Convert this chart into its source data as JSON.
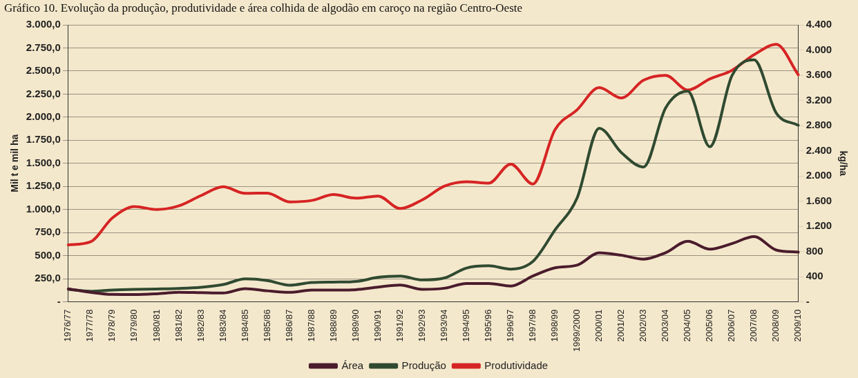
{
  "chart_data": {
    "type": "line",
    "title": "Gráfico 10. Evolução da produção, produtividade e área colhida de algodão em caroço na região Centro-Oeste",
    "ylabel": "Mil t e mil ha",
    "y2label": "kg/ha",
    "categories": [
      "1976/77",
      "1977/78",
      "1978/79",
      "1979/80",
      "1980/81",
      "1981/82",
      "1982/83",
      "1983/84",
      "1984/85",
      "1985/86",
      "1986/87",
      "1987/88",
      "1988/89",
      "1989/90",
      "1990/91",
      "1991/92",
      "1992/93",
      "1993/94",
      "1994/95",
      "1995/96",
      "1996/97",
      "1997/98",
      "1998/99",
      "1999/2000",
      "2000/01",
      "2001/02",
      "2002/03",
      "2003/04",
      "2004/05",
      "2005/06",
      "2006/07",
      "2007/08",
      "2008/09",
      "2009/10"
    ],
    "series": [
      {
        "name": "Área",
        "color": "#4a1c2c",
        "values": [
          140,
          103,
          80,
          78,
          87,
          103,
          99,
          95,
          143,
          119,
          103,
          127,
          127,
          132,
          159,
          182,
          135,
          147,
          199,
          199,
          171,
          279,
          368,
          397,
          530,
          504,
          462,
          532,
          656,
          570,
          631,
          706,
          561,
          538
        ]
      },
      {
        "name": "Produção",
        "color": "#2f4a30",
        "values": [
          135,
          115,
          128,
          135,
          139,
          145,
          158,
          187,
          248,
          230,
          180,
          209,
          214,
          220,
          265,
          278,
          237,
          258,
          366,
          390,
          354,
          437,
          778,
          1125,
          1880,
          1616,
          1460,
          2100,
          2280,
          1680,
          2450,
          2620,
          2045,
          1912
        ]
      },
      {
        "name": "Produtividade",
        "color": "#d62424",
        "axis": "y2",
        "values": [
          905,
          952,
          1335,
          1513,
          1466,
          1525,
          1688,
          1827,
          1723,
          1727,
          1587,
          1610,
          1704,
          1646,
          1681,
          1482,
          1620,
          1837,
          1908,
          1884,
          2187,
          1872,
          2734,
          3051,
          3403,
          3238,
          3520,
          3598,
          3365,
          3541,
          3678,
          3925,
          4090,
          3606
        ]
      }
    ],
    "ylim": [
      0,
      3000
    ],
    "yticks": [
      {
        "value": 0,
        "label": "-"
      },
      {
        "value": 250,
        "label": "250,0"
      },
      {
        "value": 500,
        "label": "500,0"
      },
      {
        "value": 750,
        "label": "750,0"
      },
      {
        "value": 1000,
        "label": "1.000,0"
      },
      {
        "value": 1250,
        "label": "1.250,0"
      },
      {
        "value": 1500,
        "label": "1.500,0"
      },
      {
        "value": 1750,
        "label": "1.750,0"
      },
      {
        "value": 2000,
        "label": "2.000,0"
      },
      {
        "value": 2250,
        "label": "2.250,0"
      },
      {
        "value": 2500,
        "label": "2.500,0"
      },
      {
        "value": 2750,
        "label": "2.750,0"
      },
      {
        "value": 3000,
        "label": "3.000,0"
      }
    ],
    "y2lim": [
      0,
      4400
    ],
    "y2ticks": [
      {
        "value": 0,
        "label": "-"
      },
      400,
      {
        "value": 800,
        "label": "800"
      },
      {
        "value": 1200,
        "label": "1.200"
      },
      {
        "value": 1600,
        "label": "1.600"
      },
      {
        "value": 2000,
        "label": "2.000"
      },
      {
        "value": 2400,
        "label": "2.400"
      },
      {
        "value": 2800,
        "label": "2.800"
      },
      {
        "value": 3200,
        "label": "3.200"
      },
      {
        "value": 3600,
        "label": "3.600"
      },
      {
        "value": 4000,
        "label": "4.000"
      },
      {
        "value": 4400,
        "label": "4.400"
      }
    ],
    "grid": "y",
    "legend": "bottom",
    "marker": "none",
    "line_style": "solid"
  }
}
